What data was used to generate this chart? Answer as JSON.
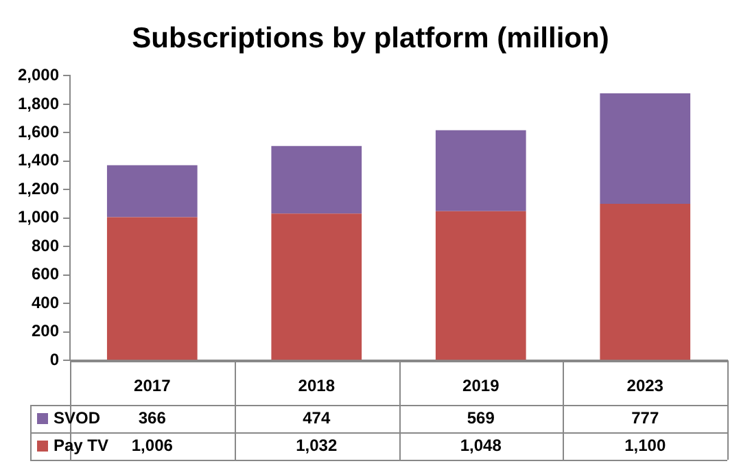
{
  "chart_data": {
    "type": "bar",
    "title": "Subscriptions by platform (million)",
    "categories": [
      "2017",
      "2018",
      "2019",
      "2023"
    ],
    "stacked": true,
    "series": [
      {
        "name": "Pay TV",
        "color": "#c0504d",
        "values": [
          1006,
          1032,
          1048,
          1100
        ],
        "value_labels": [
          "1,006",
          "1,032",
          "1,048",
          "1,100"
        ]
      },
      {
        "name": "SVOD",
        "color": "#8064a2",
        "values": [
          366,
          474,
          569,
          777
        ],
        "value_labels": [
          "366",
          "474",
          "569",
          "777"
        ]
      }
    ],
    "ylim": [
      0,
      2000
    ],
    "yticks": [
      {
        "value": 0,
        "label": "0"
      },
      {
        "value": 200,
        "label": "200"
      },
      {
        "value": 400,
        "label": "400"
      },
      {
        "value": 600,
        "label": "600"
      },
      {
        "value": 800,
        "label": "800"
      },
      {
        "value": 1000,
        "label": "1,000"
      },
      {
        "value": 1200,
        "label": "1,200"
      },
      {
        "value": 1400,
        "label": "1,400"
      },
      {
        "value": 1600,
        "label": "1,600"
      },
      {
        "value": 1800,
        "label": "1,800"
      },
      {
        "value": 2000,
        "label": "2,000"
      }
    ],
    "grid": false,
    "legend": "bottom"
  }
}
